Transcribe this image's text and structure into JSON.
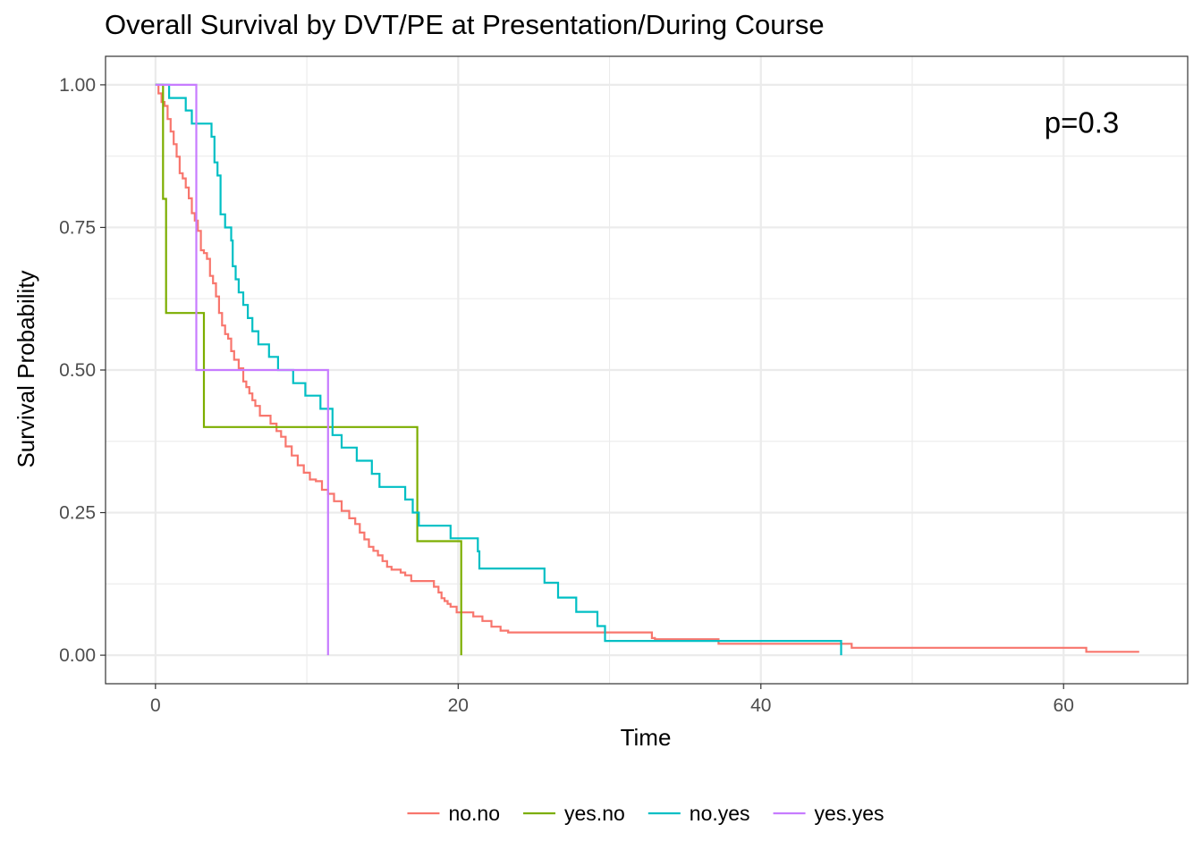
{
  "chart_data": {
    "type": "line",
    "step": true,
    "title": "Overall Survival by DVT/PE at Presentation/During Course",
    "xlabel": "Time",
    "ylabel": "Survival Probability",
    "xlim": [
      -3.3,
      68.2
    ],
    "ylim": [
      -0.05,
      1.05
    ],
    "x_ticks": [
      0,
      20,
      40,
      60
    ],
    "x_tick_labels": [
      "0",
      "20",
      "40",
      "60"
    ],
    "y_ticks": [
      0,
      0.25,
      0.5,
      0.75,
      1
    ],
    "y_tick_labels": [
      "0.00",
      "0.25",
      "0.50",
      "0.75",
      "1.00"
    ],
    "grid": true,
    "legend_position": "bottom",
    "annotation": {
      "text": "p=0.3",
      "x": 61.2,
      "y": 0.935
    },
    "series": [
      {
        "name": "no.no",
        "color": "#F8766D",
        "x": [
          0,
          0.2,
          0.4,
          0.6,
          0.8,
          1.0,
          1.2,
          1.4,
          1.6,
          1.8,
          2.0,
          2.2,
          2.4,
          2.6,
          2.8,
          3.0,
          3.2,
          3.4,
          3.6,
          3.8,
          4.0,
          4.2,
          4.4,
          4.6,
          4.8,
          5.0,
          5.2,
          5.5,
          5.8,
          6.0,
          6.2,
          6.4,
          6.6,
          6.9,
          7.2,
          7.6,
          8.0,
          8.3,
          8.6,
          9.0,
          9.4,
          9.8,
          10.2,
          10.6,
          11.0,
          11.4,
          11.8,
          12.3,
          12.8,
          13.2,
          13.5,
          13.8,
          14.1,
          14.4,
          14.7,
          15.0,
          15.3,
          15.6,
          15.9,
          16.2,
          16.5,
          16.9,
          18.4,
          18.7,
          18.9,
          19.1,
          19.3,
          19.5,
          19.7,
          19.9,
          20.2,
          21.0,
          21.6,
          22.2,
          22.8,
          23.3,
          23.8,
          24.2,
          24.6,
          26.0,
          32.8,
          33.0,
          37.2,
          46.0,
          61.5,
          65.0
        ],
        "y": [
          1.0,
          0.985,
          0.97,
          0.963,
          0.94,
          0.918,
          0.896,
          0.874,
          0.845,
          0.836,
          0.82,
          0.801,
          0.775,
          0.762,
          0.744,
          0.71,
          0.705,
          0.695,
          0.665,
          0.652,
          0.629,
          0.6,
          0.578,
          0.563,
          0.555,
          0.533,
          0.518,
          0.503,
          0.48,
          0.47,
          0.459,
          0.447,
          0.437,
          0.42,
          0.42,
          0.406,
          0.393,
          0.383,
          0.366,
          0.35,
          0.333,
          0.32,
          0.308,
          0.305,
          0.29,
          0.283,
          0.27,
          0.253,
          0.24,
          0.23,
          0.215,
          0.203,
          0.19,
          0.183,
          0.175,
          0.165,
          0.155,
          0.15,
          0.15,
          0.145,
          0.14,
          0.13,
          0.12,
          0.11,
          0.1,
          0.095,
          0.09,
          0.085,
          0.085,
          0.075,
          0.075,
          0.068,
          0.06,
          0.05,
          0.043,
          0.04,
          0.04,
          0.04,
          0.04,
          0.04,
          0.03,
          0.028,
          0.02,
          0.013,
          0.006,
          0.006
        ]
      },
      {
        "name": "yes.no",
        "color": "#7CAE00",
        "x": [
          0,
          0.5,
          0.7,
          3.2,
          17.3,
          20.2
        ],
        "y": [
          1.0,
          0.8,
          0.6,
          0.4,
          0.2,
          0.0
        ]
      },
      {
        "name": "no.yes",
        "color": "#00BFC4",
        "x": [
          0,
          0.9,
          2.0,
          2.4,
          3.7,
          3.9,
          4.1,
          4.3,
          4.6,
          5.0,
          5.1,
          5.3,
          5.5,
          5.8,
          6.1,
          6.4,
          6.8,
          7.5,
          8.1,
          8.4,
          9.1,
          9.9,
          10.9,
          11.7,
          12.3,
          13.3,
          14.3,
          14.8,
          16.5,
          17.0,
          17.4,
          19.5,
          20.5,
          21.3,
          21.4,
          25.7,
          26.6,
          27.8,
          29.2,
          29.7,
          45.3
        ],
        "y": [
          1.0,
          0.977,
          0.955,
          0.932,
          0.909,
          0.864,
          0.841,
          0.773,
          0.75,
          0.727,
          0.682,
          0.659,
          0.636,
          0.614,
          0.591,
          0.568,
          0.545,
          0.523,
          0.5,
          0.5,
          0.477,
          0.455,
          0.432,
          0.386,
          0.364,
          0.341,
          0.318,
          0.295,
          0.273,
          0.25,
          0.227,
          0.205,
          0.205,
          0.182,
          0.152,
          0.127,
          0.101,
          0.076,
          0.051,
          0.025,
          0.0
        ]
      },
      {
        "name": "yes.yes",
        "color": "#C77CFF",
        "x": [
          0,
          2.7,
          11.4
        ],
        "y": [
          1.0,
          0.5,
          0.0
        ]
      }
    ]
  }
}
